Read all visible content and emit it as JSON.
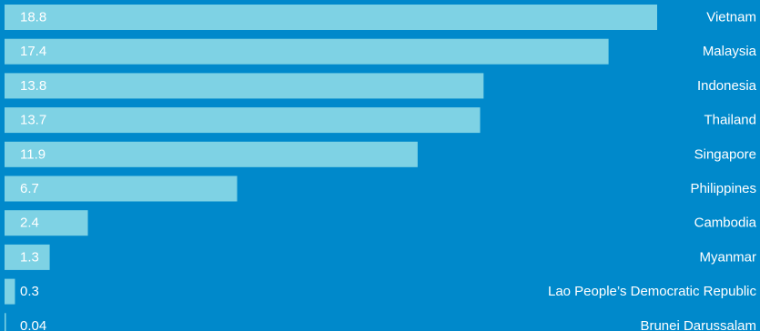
{
  "colors": {
    "background": "#0089cb",
    "bar": "#7ed2e4",
    "text": "#ffffff"
  },
  "chart_data": {
    "type": "bar",
    "orientation": "horizontal",
    "grid": false,
    "legend": "none",
    "xlim": [
      0,
      18.8
    ],
    "categories": [
      "Vietnam",
      "Malaysia",
      "Indonesia",
      "Thailand",
      "Singapore",
      "Philippines",
      "Cambodia",
      "Myanmar",
      "Lao People’s Democratic Republic",
      "Brunei Darussalam"
    ],
    "values": [
      18.8,
      17.4,
      13.8,
      13.7,
      11.9,
      6.7,
      2.4,
      1.3,
      0.3,
      0.04
    ],
    "value_labels": [
      "18.8",
      "17.4",
      "13.8",
      "13.7",
      "11.9",
      "6.7",
      "2.4",
      "1.3",
      "0.3",
      "0.04"
    ]
  }
}
